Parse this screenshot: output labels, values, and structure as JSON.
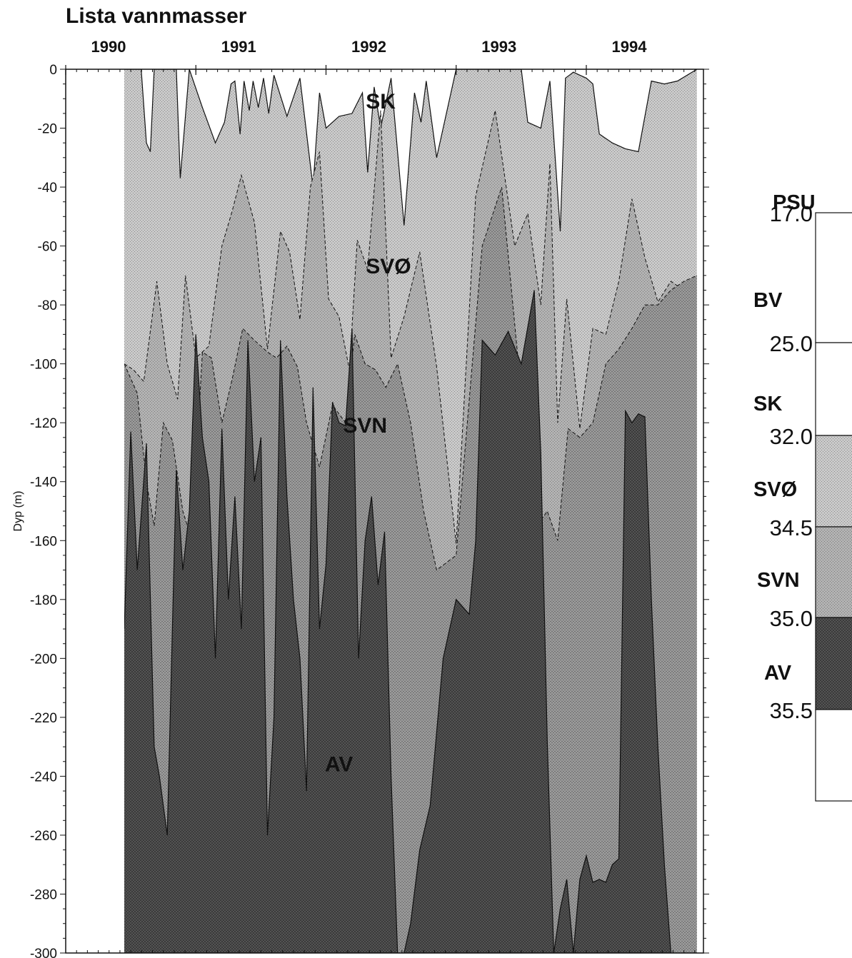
{
  "chart_data": {
    "type": "area",
    "title": "Lista vannmasser",
    "xlabel": "",
    "ylabel": "Dyp (m)",
    "x_ticks": [
      "1990",
      "1991",
      "1992",
      "1993",
      "1994"
    ],
    "xlim": [
      1990.0,
      1994.9
    ],
    "ylim": [
      -300,
      0
    ],
    "y_ticks": [
      0,
      -20,
      -40,
      -60,
      -80,
      -100,
      -120,
      -140,
      -160,
      -180,
      -200,
      -220,
      -240,
      -260,
      -280,
      -300
    ],
    "grid": false,
    "data_extent": [
      1990.45,
      1994.85
    ],
    "region_labels": [
      {
        "text": "SK",
        "x": 1992.42,
        "y": -8
      },
      {
        "text": "SVØ",
        "x": 1992.48,
        "y": -64
      },
      {
        "text": "SVN",
        "x": 1992.3,
        "y": -118
      },
      {
        "text": "AV",
        "x": 1992.1,
        "y": -233
      }
    ],
    "series": [
      {
        "key": "sk_boundary",
        "x": [
          1990.45,
          1990.58,
          1990.62,
          1990.65,
          1990.68,
          1990.85,
          1990.88,
          1990.95,
          1991.05,
          1991.15,
          1991.22,
          1991.27,
          1991.3,
          1991.34,
          1991.37,
          1991.41,
          1991.44,
          1991.48,
          1991.52,
          1991.56,
          1991.6,
          1991.7,
          1991.8,
          1991.9,
          1991.95,
          1992.0,
          1992.1,
          1992.2,
          1992.28,
          1992.32,
          1992.37,
          1992.42,
          1992.5,
          1992.6,
          1992.68,
          1992.73,
          1992.77,
          1992.85,
          1993.0,
          1993.5,
          1993.55,
          1993.65,
          1993.72,
          1993.8,
          1993.84,
          1993.87,
          1993.9,
          1993.95,
          1994.0,
          1994.05,
          1994.1,
          1994.2,
          1994.3,
          1994.4,
          1994.5,
          1994.6,
          1994.7,
          1994.85
        ],
        "y": [
          0,
          0,
          -25,
          -28,
          0,
          0,
          -37,
          0,
          -13,
          -25,
          -18,
          -5,
          -4,
          -22,
          -4,
          -14,
          -4,
          -13,
          -3,
          -15,
          -2,
          -16,
          -3,
          -40,
          -8,
          -20,
          -16,
          -15,
          -8,
          -35,
          -6,
          -20,
          -3,
          -53,
          -8,
          -18,
          -4,
          -30,
          0,
          0,
          -18,
          -20,
          -4,
          -55,
          -3,
          -2,
          -1,
          -2,
          -3,
          -5,
          -22,
          -25,
          -27,
          -28,
          -4,
          -5,
          -4,
          0
        ]
      },
      {
        "key": "svo_boundary",
        "x": [
          1990.45,
          1990.52,
          1990.6,
          1990.7,
          1990.78,
          1990.86,
          1990.92,
          1991.0,
          1991.1,
          1991.2,
          1991.28,
          1991.35,
          1991.45,
          1991.55,
          1991.65,
          1991.72,
          1991.8,
          1991.88,
          1991.95,
          1992.02,
          1992.1,
          1992.18,
          1992.24,
          1992.32,
          1992.42,
          1992.5,
          1992.6,
          1992.72,
          1992.85,
          1993.0,
          1993.15,
          1993.3,
          1993.45,
          1993.55,
          1993.65,
          1993.72,
          1993.78,
          1993.85,
          1993.95,
          1994.05,
          1994.15,
          1994.25,
          1994.35,
          1994.45,
          1994.55,
          1994.65,
          1994.75,
          1994.85
        ],
        "y": [
          -100,
          -102,
          -106,
          -72,
          -100,
          -112,
          -70,
          -98,
          -94,
          -60,
          -48,
          -36,
          -52,
          -95,
          -55,
          -62,
          -85,
          -40,
          -28,
          -78,
          -84,
          -102,
          -58,
          -68,
          -14,
          -98,
          -84,
          -62,
          -101,
          -161,
          -43,
          -14,
          -60,
          -49,
          -80,
          -32,
          -120,
          -78,
          -122,
          -88,
          -90,
          -72,
          -44,
          -64,
          -79,
          -72,
          -75,
          -70
        ]
      },
      {
        "key": "svn_boundary",
        "x": [
          1990.45,
          1990.55,
          1990.62,
          1990.68,
          1990.75,
          1990.82,
          1990.9,
          1990.97,
          1991.05,
          1991.12,
          1991.2,
          1991.28,
          1991.36,
          1991.45,
          1991.55,
          1991.62,
          1991.7,
          1991.78,
          1991.85,
          1991.95,
          1992.05,
          1992.15,
          1992.22,
          1992.3,
          1992.38,
          1992.46,
          1992.55,
          1992.65,
          1992.75,
          1992.85,
          1993.0,
          1993.2,
          1993.35,
          1993.5,
          1993.62,
          1993.7,
          1993.78,
          1993.86,
          1993.95,
          1994.05,
          1994.15,
          1994.25,
          1994.35,
          1994.45,
          1994.55,
          1994.65,
          1994.75,
          1994.85
        ],
        "y": [
          -100,
          -110,
          -140,
          -155,
          -120,
          -126,
          -150,
          -160,
          -96,
          -98,
          -120,
          -105,
          -88,
          -92,
          -96,
          -98,
          -94,
          -101,
          -120,
          -135,
          -114,
          -120,
          -90,
          -100,
          -102,
          -108,
          -100,
          -120,
          -150,
          -170,
          -165,
          -60,
          -40,
          -110,
          -155,
          -150,
          -160,
          -122,
          -125,
          -120,
          -100,
          -95,
          -88,
          -80,
          -80,
          -75,
          -72,
          -70
        ]
      },
      {
        "key": "av_boundary",
        "x": [
          1990.45,
          1990.5,
          1990.55,
          1990.62,
          1990.68,
          1990.72,
          1990.78,
          1990.85,
          1990.9,
          1990.95,
          1991.0,
          1991.05,
          1991.1,
          1991.15,
          1991.2,
          1991.25,
          1991.3,
          1991.35,
          1991.4,
          1991.45,
          1991.5,
          1991.55,
          1991.6,
          1991.65,
          1991.7,
          1991.75,
          1991.8,
          1991.85,
          1991.9,
          1991.95,
          1992.0,
          1992.05,
          1992.1,
          1992.15,
          1992.2,
          1992.25,
          1992.3,
          1992.35,
          1992.4,
          1992.45,
          1992.5,
          1992.55,
          1992.6,
          1992.65,
          1992.72,
          1992.8,
          1992.9,
          1993.0,
          1993.1,
          1993.15,
          1993.2,
          1993.3,
          1993.4,
          1993.5,
          1993.6,
          1993.65,
          1993.7,
          1993.75,
          1993.8,
          1993.85,
          1993.9,
          1993.95,
          1994.0,
          1994.05,
          1994.1,
          1994.15,
          1994.2,
          1994.25,
          1994.3,
          1994.35,
          1994.4,
          1994.45,
          1994.5,
          1994.55,
          1994.6,
          1994.65,
          1994.7,
          1994.75,
          1994.8,
          1994.85
        ],
        "y": [
          -190,
          -123,
          -170,
          -127,
          -230,
          -240,
          -260,
          -136,
          -170,
          -150,
          -90,
          -125,
          -140,
          -200,
          -122,
          -180,
          -145,
          -190,
          -92,
          -140,
          -125,
          -260,
          -220,
          -92,
          -145,
          -180,
          -200,
          -245,
          -108,
          -190,
          -168,
          -113,
          -120,
          -121,
          -88,
          -200,
          -160,
          -145,
          -175,
          -157,
          -240,
          -300,
          -300,
          -290,
          -265,
          -250,
          -200,
          -180,
          -185,
          -160,
          -92,
          -97,
          -89,
          -100,
          -75,
          -130,
          -228,
          -300,
          -285,
          -275,
          -300,
          -275,
          -267,
          -276,
          -275,
          -276,
          -270,
          -268,
          -116,
          -120,
          -117,
          -118,
          -180,
          -230,
          -270,
          -300,
          -300,
          -300,
          -300,
          -300
        ]
      }
    ],
    "legend": {
      "title": "PSU",
      "boundaries": [
        "17.0",
        "25.0",
        "32.0",
        "34.5",
        "35.0",
        "35.5"
      ],
      "classes": [
        "BV",
        "SK",
        "SVØ",
        "SVN",
        "AV"
      ]
    },
    "colors": {
      "BV": "#ffffff",
      "SK": "#b9b9b9",
      "SVØ": "#a3a3a3",
      "SVN": "#8e8e8e",
      "AV": "#484848",
      "page_bg": "#ffffff",
      "line": "#111111"
    }
  }
}
